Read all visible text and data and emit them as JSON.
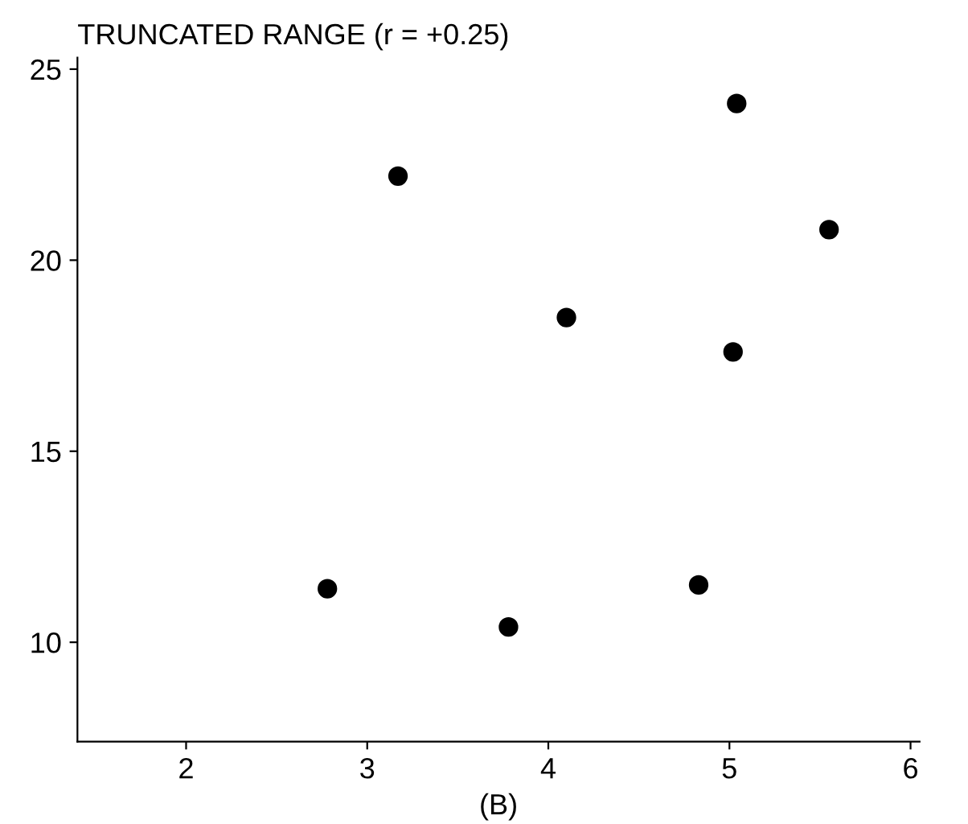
{
  "chart_data": {
    "type": "scatter",
    "title": "TRUNCATED RANGE (r = +0.25)",
    "xlabel": "(B)",
    "x": [
      2.78,
      3.17,
      3.78,
      4.1,
      4.83,
      5.04,
      5.02,
      5.55
    ],
    "series": [
      {
        "color": "#000000",
        "values": [
          11.4,
          22.2,
          10.4,
          18.5,
          11.5,
          24.1,
          17.6,
          20.8
        ]
      }
    ],
    "xlim": [
      1.4,
      6.05
    ],
    "ylim": [
      7.4,
      25.3
    ],
    "xticks": [
      2,
      3,
      4,
      5,
      6
    ],
    "yticks": [
      10,
      15,
      20,
      25
    ],
    "marker": "circle",
    "grid": false,
    "legend": false
  }
}
